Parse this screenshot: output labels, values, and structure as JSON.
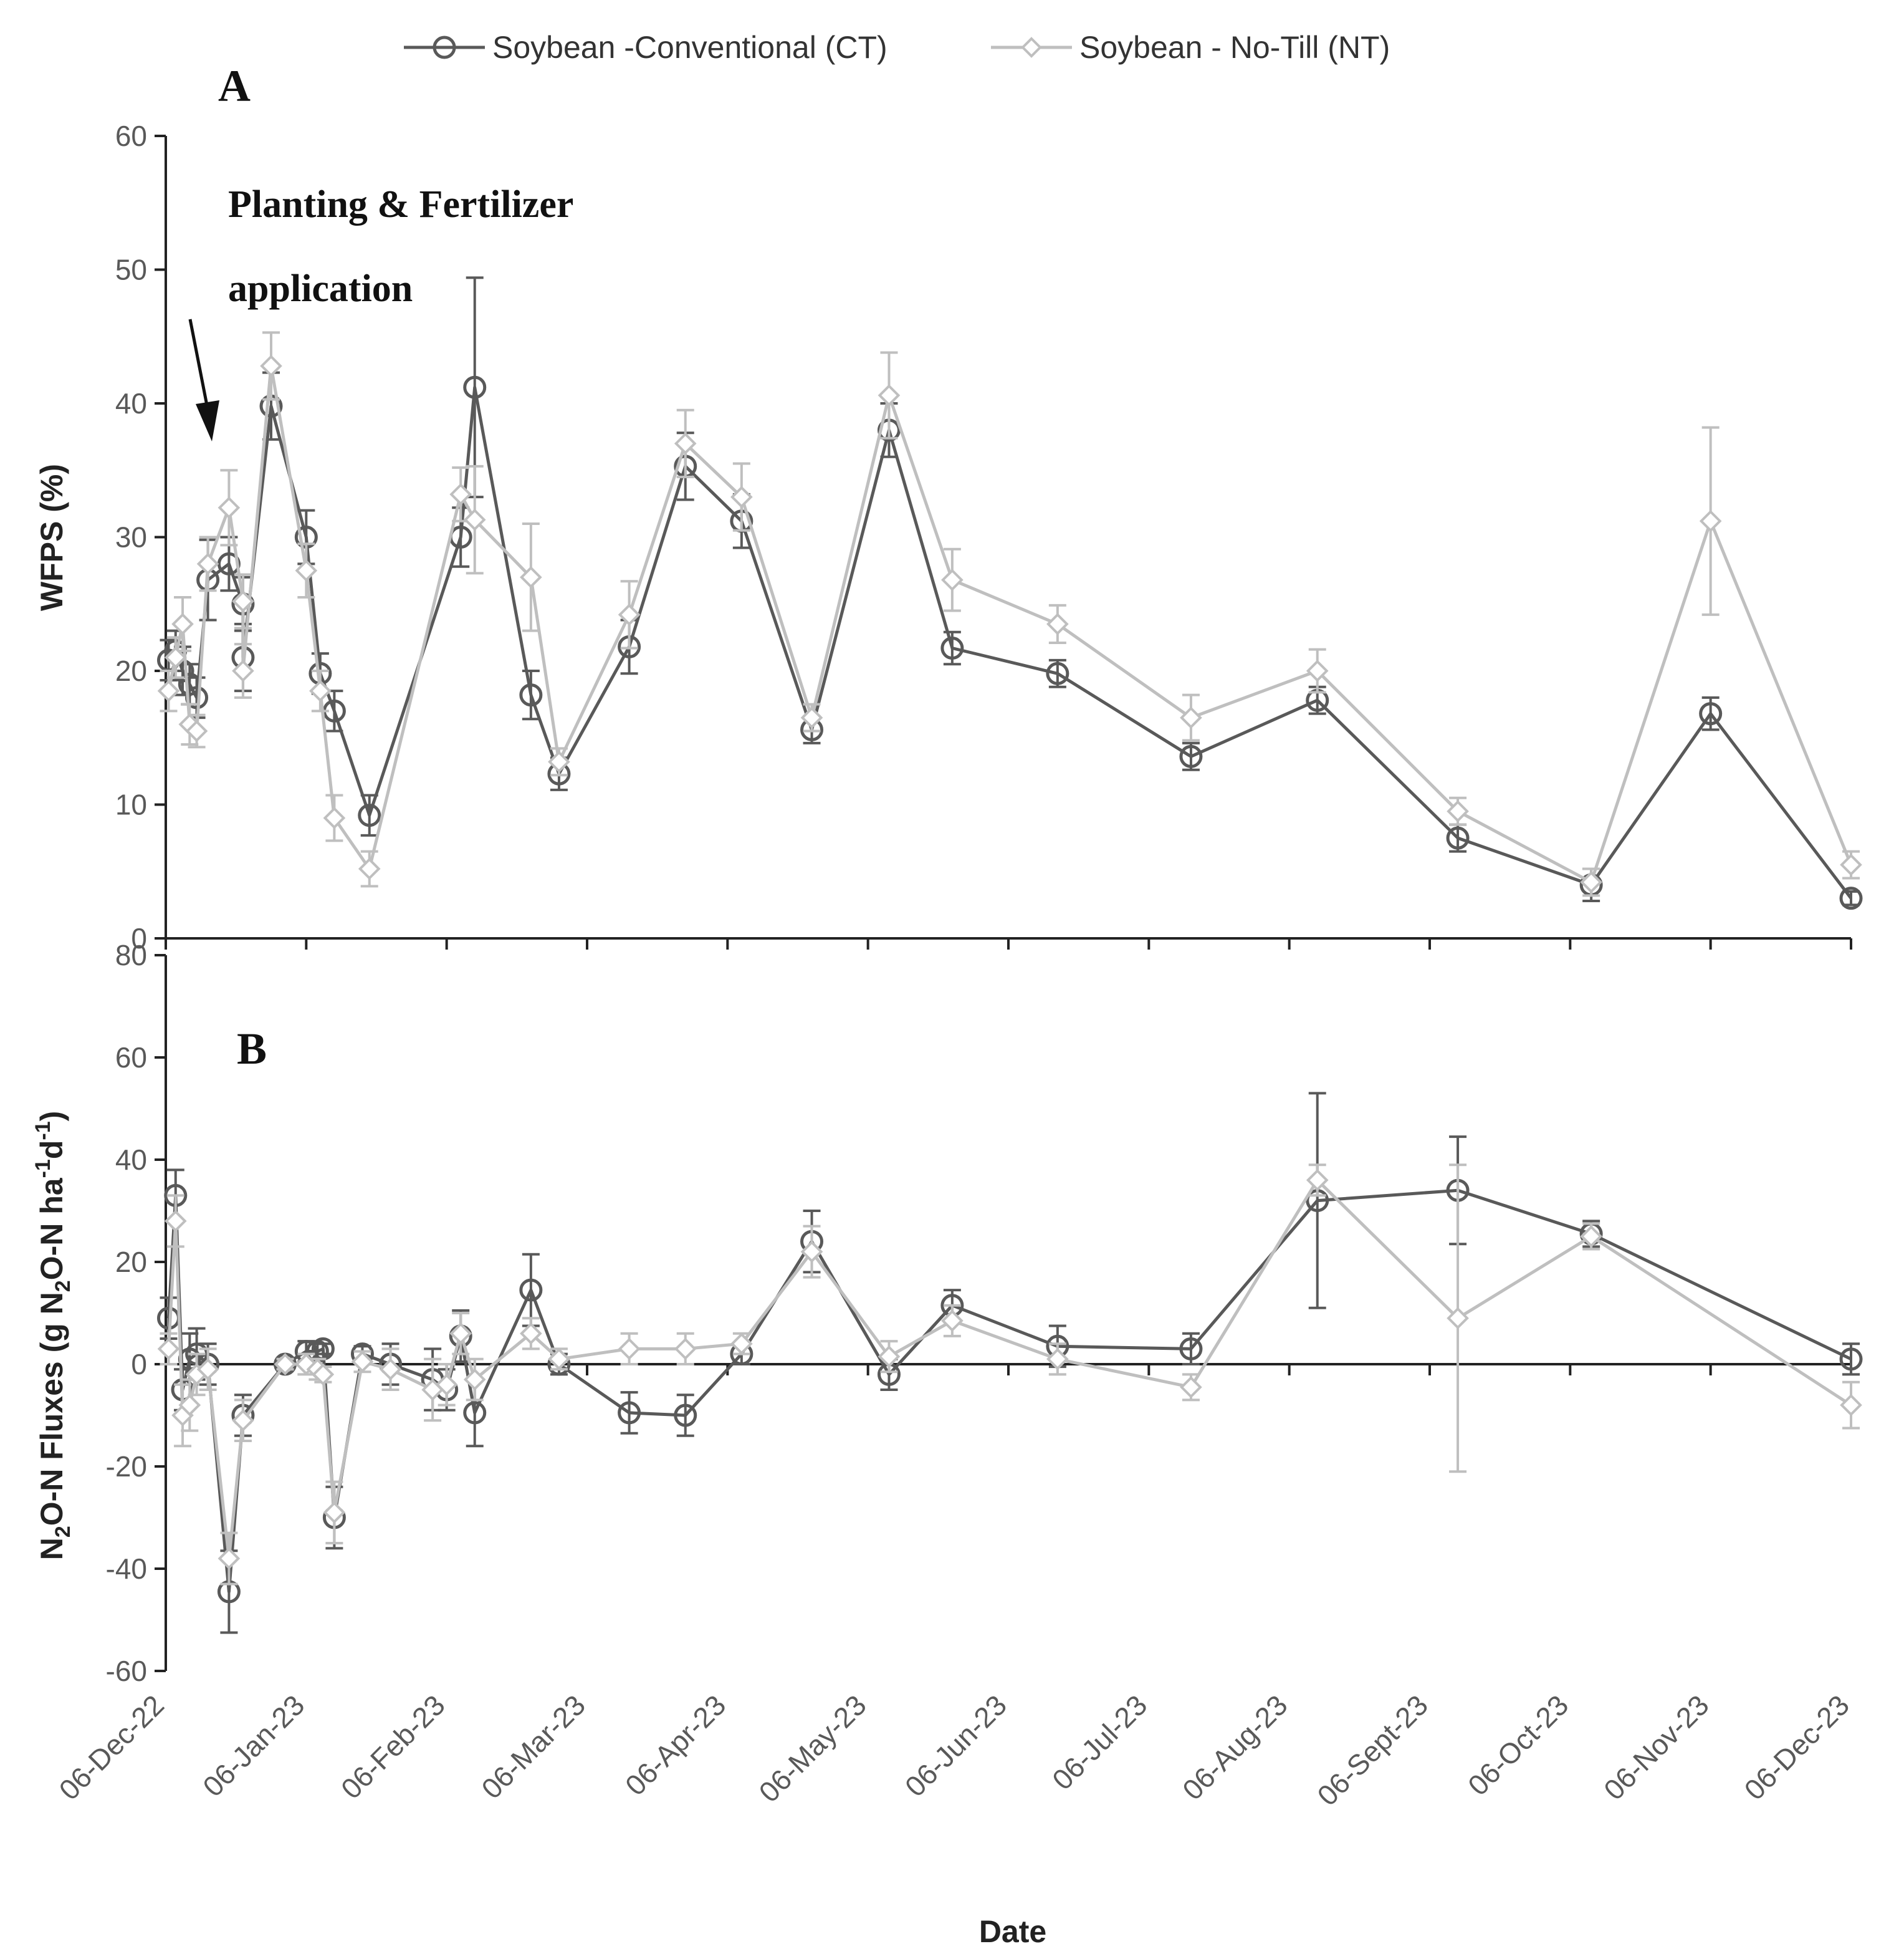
{
  "legend": {
    "ct": "Soybean -Conventional (CT)",
    "nt": "Soybean - No-Till (NT)"
  },
  "colors": {
    "ct": "#595959",
    "nt": "#bfbfbf",
    "axis": "#222222"
  },
  "xaxis": {
    "title": "Date",
    "labels": [
      "06-Dec-22",
      "06-Jan-23",
      "06-Feb-23",
      "06-Mar-23",
      "06-Apr-23",
      "06-May-23",
      "06-Jun-23",
      "06-Jul-23",
      "06-Aug-23",
      "06-Sept-23",
      "06-Oct-23",
      "06-Nov-23",
      "06-Dec-23"
    ]
  },
  "chart_data": [
    {
      "type": "line",
      "panel": "A",
      "annotation_line1": "Planting & Fertilizer",
      "annotation_line2": "application",
      "ylabel": "WFPS (%)",
      "ylim": [
        0,
        60
      ],
      "yticks": [
        0,
        10,
        20,
        30,
        40,
        50,
        60
      ],
      "ytick_labels": [
        "0",
        "10",
        "20",
        "30",
        "40",
        "50",
        "60"
      ],
      "x_unit": "months since 06-Dec-22",
      "series": [
        {
          "name": "Soybean -Conventional (CT)",
          "points": [
            {
              "x": 0.02,
              "y": 20.8,
              "e": 1.5
            },
            {
              "x": 0.07,
              "y": 21.5,
              "e": 1.5
            },
            {
              "x": 0.12,
              "y": 20.0,
              "e": 1.8
            },
            {
              "x": 0.17,
              "y": 19.0,
              "e": 1.5
            },
            {
              "x": 0.22,
              "y": 18.0,
              "e": 1.5
            },
            {
              "x": 0.3,
              "y": 26.8,
              "e": 3.0
            },
            {
              "x": 0.45,
              "y": 28.0,
              "e": 2.0
            },
            {
              "x": 0.55,
              "y": 25.0,
              "e": 2.0
            },
            {
              "x": 0.55,
              "y": 21.0,
              "e": 2.5
            },
            {
              "x": 0.75,
              "y": 39.8,
              "e": 2.5
            },
            {
              "x": 1.0,
              "y": 30.0,
              "e": 2.0
            },
            {
              "x": 1.1,
              "y": 19.8,
              "e": 1.5
            },
            {
              "x": 1.2,
              "y": 17.0,
              "e": 1.5
            },
            {
              "x": 1.45,
              "y": 9.2,
              "e": 1.5
            },
            {
              "x": 2.1,
              "y": 30.0,
              "e": 2.2
            },
            {
              "x": 2.2,
              "y": 41.2,
              "e": 8.2
            },
            {
              "x": 2.6,
              "y": 18.2,
              "e": 1.8
            },
            {
              "x": 2.8,
              "y": 12.3,
              "e": 1.2
            },
            {
              "x": 3.3,
              "y": 21.8,
              "e": 2.0
            },
            {
              "x": 3.7,
              "y": 35.3,
              "e": 2.5
            },
            {
              "x": 4.1,
              "y": 31.2,
              "e": 2.0
            },
            {
              "x": 4.6,
              "y": 15.6,
              "e": 1.0
            },
            {
              "x": 5.15,
              "y": 38.0,
              "e": 2.0
            },
            {
              "x": 5.6,
              "y": 21.7,
              "e": 1.2
            },
            {
              "x": 6.35,
              "y": 19.8,
              "e": 1.0
            },
            {
              "x": 7.3,
              "y": 13.6,
              "e": 1.0
            },
            {
              "x": 8.2,
              "y": 17.8,
              "e": 1.0
            },
            {
              "x": 9.2,
              "y": 7.5,
              "e": 1.0
            },
            {
              "x": 10.15,
              "y": 4.0,
              "e": 1.2
            },
            {
              "x": 11.0,
              "y": 16.8,
              "e": 1.2
            },
            {
              "x": 12.0,
              "y": 3.0,
              "e": 0.5
            }
          ]
        },
        {
          "name": "Soybean - No-Till (NT)",
          "points": [
            {
              "x": 0.02,
              "y": 18.5,
              "e": 1.5
            },
            {
              "x": 0.07,
              "y": 21.0,
              "e": 1.5
            },
            {
              "x": 0.12,
              "y": 23.5,
              "e": 2.0
            },
            {
              "x": 0.17,
              "y": 16.0,
              "e": 1.5
            },
            {
              "x": 0.22,
              "y": 15.5,
              "e": 1.2
            },
            {
              "x": 0.3,
              "y": 28.0,
              "e": 2.0
            },
            {
              "x": 0.45,
              "y": 32.2,
              "e": 2.8
            },
            {
              "x": 0.55,
              "y": 25.2,
              "e": 2.0
            },
            {
              "x": 0.55,
              "y": 20.0,
              "e": 2.0
            },
            {
              "x": 0.75,
              "y": 42.8,
              "e": 2.5
            },
            {
              "x": 1.0,
              "y": 27.5,
              "e": 2.0
            },
            {
              "x": 1.1,
              "y": 18.5,
              "e": 1.5
            },
            {
              "x": 1.2,
              "y": 9.0,
              "e": 1.7
            },
            {
              "x": 1.45,
              "y": 5.2,
              "e": 1.3
            },
            {
              "x": 2.1,
              "y": 33.2,
              "e": 2.0
            },
            {
              "x": 2.2,
              "y": 31.3,
              "e": 4.0
            },
            {
              "x": 2.6,
              "y": 27.0,
              "e": 4.0
            },
            {
              "x": 2.8,
              "y": 13.2,
              "e": 1.0
            },
            {
              "x": 3.3,
              "y": 24.2,
              "e": 2.5
            },
            {
              "x": 3.7,
              "y": 37.0,
              "e": 2.5
            },
            {
              "x": 4.1,
              "y": 33.0,
              "e": 2.5
            },
            {
              "x": 4.6,
              "y": 16.5,
              "e": 1.0
            },
            {
              "x": 5.15,
              "y": 40.6,
              "e": 3.2
            },
            {
              "x": 5.6,
              "y": 26.8,
              "e": 2.3
            },
            {
              "x": 6.35,
              "y": 23.5,
              "e": 1.4
            },
            {
              "x": 7.3,
              "y": 16.5,
              "e": 1.7
            },
            {
              "x": 8.2,
              "y": 20.0,
              "e": 1.6
            },
            {
              "x": 9.2,
              "y": 9.5,
              "e": 1.0
            },
            {
              "x": 10.15,
              "y": 4.2,
              "e": 1.0
            },
            {
              "x": 11.0,
              "y": 31.2,
              "e": 7.0
            },
            {
              "x": 12.0,
              "y": 5.5,
              "e": 1.0
            }
          ]
        }
      ]
    },
    {
      "type": "line",
      "panel": "B",
      "ylabel": "N2O-N Fluxes (g N2O-N ha-1d-1)",
      "ylabel_parts": {
        "a": "N",
        "b": "2",
        "c": "O-N Fluxes (g N",
        "d": "2",
        "e": "O-N ha",
        "f": "-1",
        "g": "d",
        "h": "-1",
        "i": ")"
      },
      "ylim": [
        -60,
        80
      ],
      "yticks": [
        -60,
        -40,
        -20,
        0,
        20,
        40,
        60,
        80
      ],
      "ytick_labels": [
        "-60",
        "-40",
        "-20",
        "0",
        "20",
        "40",
        "60",
        "80"
      ],
      "x_unit": "months since 06-Dec-22",
      "series": [
        {
          "name": "Soybean -Conventional (CT)",
          "points": [
            {
              "x": 0.02,
              "y": 9.0,
              "e": 4.0
            },
            {
              "x": 0.07,
              "y": 33.0,
              "e": 5.0
            },
            {
              "x": 0.12,
              "y": -5.0,
              "e": 4.0
            },
            {
              "x": 0.17,
              "y": 1.0,
              "e": 5.0
            },
            {
              "x": 0.22,
              "y": 2.0,
              "e": 5.0
            },
            {
              "x": 0.3,
              "y": 0.0,
              "e": 4.0
            },
            {
              "x": 0.45,
              "y": -44.5,
              "e": 8.0
            },
            {
              "x": 0.55,
              "y": -10.0,
              "e": 4.0
            },
            {
              "x": 0.85,
              "y": 0.0,
              "e": 1.0
            },
            {
              "x": 1.0,
              "y": 2.5,
              "e": 2.0
            },
            {
              "x": 1.08,
              "y": 2.5,
              "e": 1.5
            },
            {
              "x": 1.12,
              "y": 3.0,
              "e": 1.0
            },
            {
              "x": 1.2,
              "y": -30.0,
              "e": 6.0
            },
            {
              "x": 1.4,
              "y": 2.0,
              "e": 1.5
            },
            {
              "x": 1.6,
              "y": 0.0,
              "e": 4.0
            },
            {
              "x": 1.9,
              "y": -3.0,
              "e": 6.0
            },
            {
              "x": 2.0,
              "y": -5.0,
              "e": 4.0
            },
            {
              "x": 2.1,
              "y": 5.5,
              "e": 5.0
            },
            {
              "x": 2.2,
              "y": -9.5,
              "e": 6.5
            },
            {
              "x": 2.6,
              "y": 14.5,
              "e": 7.0
            },
            {
              "x": 2.8,
              "y": 0.0,
              "e": 2.0
            },
            {
              "x": 3.3,
              "y": -9.5,
              "e": 4.0
            },
            {
              "x": 3.7,
              "y": -10.0,
              "e": 4.0
            },
            {
              "x": 4.1,
              "y": 2.0,
              "e": 2.0
            },
            {
              "x": 4.6,
              "y": 24.0,
              "e": 6.0
            },
            {
              "x": 5.15,
              "y": -2.0,
              "e": 3.0
            },
            {
              "x": 5.6,
              "y": 11.5,
              "e": 3.0
            },
            {
              "x": 6.35,
              "y": 3.5,
              "e": 4.0
            },
            {
              "x": 7.3,
              "y": 3.0,
              "e": 3.0
            },
            {
              "x": 8.2,
              "y": 32.0,
              "e": 21.0
            },
            {
              "x": 9.2,
              "y": 34.0,
              "e": 10.5
            },
            {
              "x": 10.15,
              "y": 25.5,
              "e": 2.5
            },
            {
              "x": 12.0,
              "y": 1.0,
              "e": 3.0
            }
          ]
        },
        {
          "name": "Soybean - No-Till (NT)",
          "points": [
            {
              "x": 0.02,
              "y": 3.0,
              "e": 3.0
            },
            {
              "x": 0.07,
              "y": 28.0,
              "e": 5.0
            },
            {
              "x": 0.12,
              "y": -10.0,
              "e": 6.0
            },
            {
              "x": 0.17,
              "y": -8.0,
              "e": 5.0
            },
            {
              "x": 0.22,
              "y": -2.0,
              "e": 4.0
            },
            {
              "x": 0.3,
              "y": -1.0,
              "e": 4.0
            },
            {
              "x": 0.45,
              "y": -38.0,
              "e": 5.0
            },
            {
              "x": 0.55,
              "y": -11.0,
              "e": 4.0
            },
            {
              "x": 0.85,
              "y": 0.0,
              "e": 1.0
            },
            {
              "x": 1.0,
              "y": 0.0,
              "e": 2.0
            },
            {
              "x": 1.08,
              "y": -1.0,
              "e": 2.0
            },
            {
              "x": 1.12,
              "y": -2.0,
              "e": 1.5
            },
            {
              "x": 1.2,
              "y": -29.0,
              "e": 6.0
            },
            {
              "x": 1.4,
              "y": 0.5,
              "e": 2.0
            },
            {
              "x": 1.6,
              "y": -1.0,
              "e": 4.0
            },
            {
              "x": 1.9,
              "y": -5.0,
              "e": 6.0
            },
            {
              "x": 2.0,
              "y": -4.0,
              "e": 4.0
            },
            {
              "x": 2.1,
              "y": 6.0,
              "e": 4.0
            },
            {
              "x": 2.2,
              "y": -3.0,
              "e": 4.0
            },
            {
              "x": 2.6,
              "y": 6.0,
              "e": 3.0
            },
            {
              "x": 2.8,
              "y": 1.0,
              "e": 2.0
            },
            {
              "x": 3.3,
              "y": 3.0,
              "e": 3.0
            },
            {
              "x": 3.7,
              "y": 3.0,
              "e": 3.0
            },
            {
              "x": 4.1,
              "y": 4.0,
              "e": 2.0
            },
            {
              "x": 4.6,
              "y": 22.0,
              "e": 5.0
            },
            {
              "x": 5.15,
              "y": 1.5,
              "e": 3.0
            },
            {
              "x": 5.6,
              "y": 8.5,
              "e": 3.0
            },
            {
              "x": 6.35,
              "y": 1.0,
              "e": 3.0
            },
            {
              "x": 7.3,
              "y": -4.5,
              "e": 2.5
            },
            {
              "x": 8.2,
              "y": 36.0,
              "e": 3.0
            },
            {
              "x": 9.2,
              "y": 9.0,
              "e": 30.0
            },
            {
              "x": 10.15,
              "y": 25.0,
              "e": 2.5
            },
            {
              "x": 12.0,
              "y": -8.0,
              "e": 4.5
            }
          ]
        }
      ]
    }
  ]
}
